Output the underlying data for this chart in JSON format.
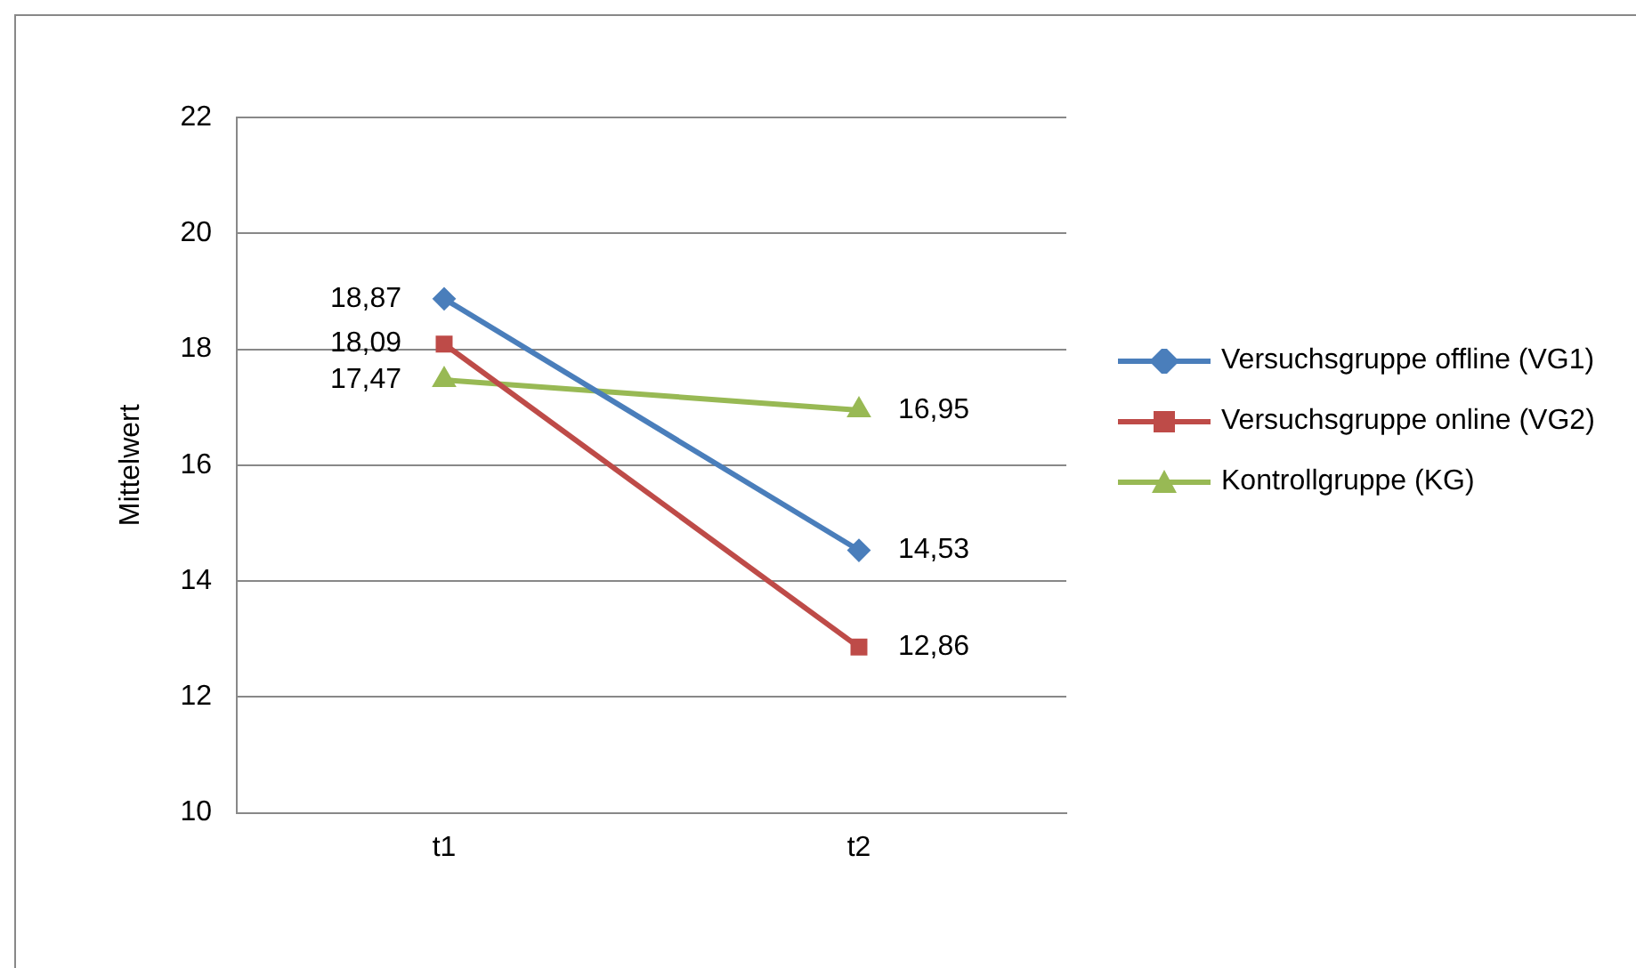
{
  "chart_data": {
    "type": "line",
    "ylabel": "Mittelwert",
    "categories": [
      "t1",
      "t2"
    ],
    "series": [
      {
        "name": "Versuchsgruppe offline (VG1)",
        "color": "#4a7ebb",
        "values": [
          18.87,
          14.53
        ],
        "marker": "diamond",
        "value_labels": [
          "18,87",
          "14,53"
        ]
      },
      {
        "name": "Versuchsgruppe online (VG2)",
        "color": "#be4b48",
        "values": [
          18.09,
          12.86
        ],
        "marker": "square",
        "value_labels": [
          "18,09",
          "12,86"
        ]
      },
      {
        "name": "Kontrollgruppe (KG)",
        "color": "#98b954",
        "values": [
          17.47,
          16.95
        ],
        "marker": "triangle",
        "value_labels": [
          "17,47",
          "16,95"
        ]
      }
    ],
    "ylim": [
      10,
      22
    ],
    "yticks": [
      10,
      12,
      14,
      16,
      18,
      20,
      22
    ],
    "grid": "y",
    "legend": "right",
    "line_style": "solid"
  }
}
